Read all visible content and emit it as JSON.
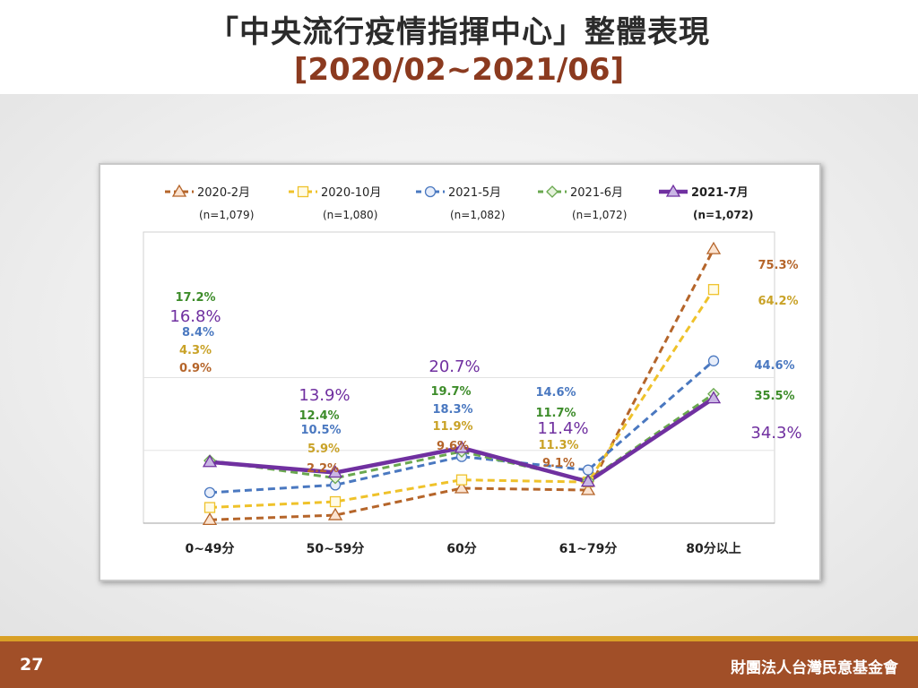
{
  "slide": {
    "title": "「中央流行疫情指揮中心」整體表現",
    "subtitle": "[2020/02~2021/06]",
    "page_number": "27",
    "organization": "財團法人台灣民意基金會"
  },
  "colors": {
    "2020-2": "#b5652a",
    "2020-10": "#efc22a",
    "2021-5": "#4a78c0",
    "2021-6": "#6aa84f",
    "2021-7": "#7030a0",
    "footer": "#a14f28",
    "title_sub": "#8b3a1f"
  },
  "chart_data": {
    "type": "line",
    "categories": [
      "0~49分",
      "50~59分",
      "60分",
      "61~79分",
      "80分以上"
    ],
    "ylim": [
      0,
      80
    ],
    "grid": "horizontal",
    "legend_position": "top",
    "series": [
      {
        "name": "2020-2月",
        "n": "(n=1,079)",
        "marker": "triangle",
        "dash": true,
        "label_color": "#b5652a",
        "values": [
          0.9,
          2.2,
          9.6,
          9.1,
          75.3
        ],
        "labels": [
          "0.9%",
          "2.2%",
          "9.6%",
          "9.1%",
          "75.3%"
        ]
      },
      {
        "name": "2020-10月",
        "n": "(n=1,080)",
        "marker": "square",
        "dash": true,
        "label_color": "#c9a227",
        "values": [
          4.3,
          5.9,
          11.9,
          11.3,
          64.2
        ],
        "labels": [
          "4.3%",
          "5.9%",
          "11.9%",
          "11.3%",
          "64.2%"
        ]
      },
      {
        "name": "2021-5月",
        "n": "(n=1,082)",
        "marker": "circle",
        "dash": true,
        "label_color": "#4a78c0",
        "values": [
          8.4,
          10.5,
          18.3,
          14.6,
          44.6
        ],
        "labels": [
          "8.4%",
          "10.5%",
          "18.3%",
          "14.6%",
          "44.6%"
        ]
      },
      {
        "name": "2021-6月",
        "n": "(n=1,072)",
        "marker": "diamond",
        "dash": true,
        "label_color": "#3d8c2a",
        "values": [
          17.2,
          12.4,
          19.7,
          11.7,
          35.5
        ],
        "labels": [
          "17.2%",
          "12.4%",
          "19.7%",
          "11.7%",
          "35.5%"
        ]
      },
      {
        "name": "2021-7月",
        "n": "(n=1,072)",
        "marker": "triangle",
        "dash": false,
        "label_color": "#7030a0",
        "values": [
          16.8,
          13.9,
          20.7,
          11.4,
          34.3
        ],
        "labels": [
          "16.8%",
          "13.9%",
          "20.7%",
          "11.4%",
          "34.3%"
        ]
      }
    ]
  }
}
